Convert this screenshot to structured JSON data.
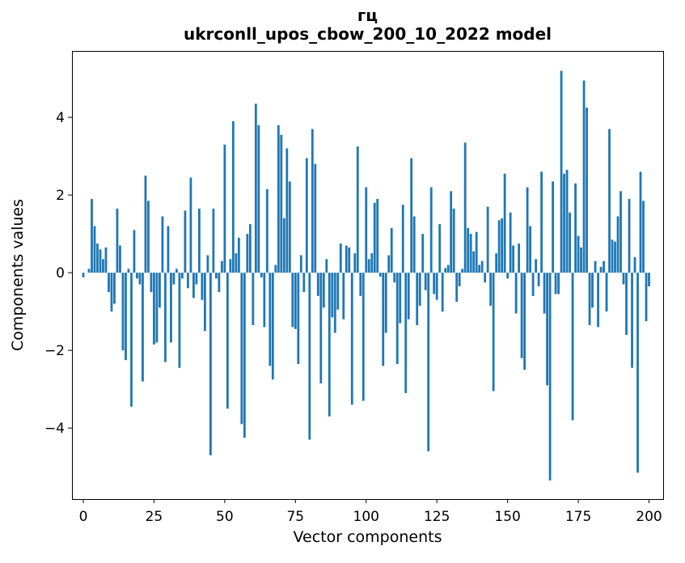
{
  "chart_data": {
    "type": "bar",
    "title": "гц",
    "subtitle": "ukrconll_upos_cbow_200_10_2022 model",
    "xlabel": "Vector components",
    "ylabel": "Components values",
    "bar_color": "#1f77b4",
    "axis_color": "#000000",
    "background_color": "#ffffff",
    "grid": "off",
    "legend": "none",
    "xlim": [
      -4,
      205
    ],
    "ylim": [
      -5.83,
      5.71
    ],
    "xticks": [
      0,
      25,
      50,
      75,
      100,
      125,
      150,
      175,
      200
    ],
    "xtick_labels": [
      "0",
      "25",
      "50",
      "75",
      "100",
      "125",
      "150",
      "175",
      "200"
    ],
    "yticks": [
      4,
      2,
      0,
      -2,
      -4
    ],
    "ytick_labels": [
      "4",
      "2",
      "0",
      "−2",
      "−4"
    ],
    "x_start_index": 0,
    "bar_width_data_units": 0.8,
    "values": [
      -0.12,
      0,
      0.1,
      1.9,
      1.2,
      0.75,
      0.6,
      0.35,
      0.65,
      -0.5,
      -1.0,
      -0.8,
      1.65,
      0.7,
      -2.0,
      -2.25,
      0.1,
      -3.45,
      1.1,
      -0.15,
      -0.3,
      -2.8,
      2.5,
      1.85,
      -0.5,
      -1.85,
      -1.8,
      -0.9,
      1.45,
      -2.3,
      1.2,
      -1.8,
      -0.3,
      0.1,
      -2.45,
      -0.15,
      1.6,
      -0.4,
      2.45,
      -0.65,
      -0.3,
      1.65,
      -0.7,
      -1.5,
      0.45,
      -4.7,
      1.65,
      -0.15,
      -0.5,
      0.3,
      3.3,
      -3.5,
      0.35,
      3.9,
      0.5,
      0.9,
      -3.9,
      -4.25,
      1.0,
      1.25,
      -1.35,
      4.35,
      3.8,
      -0.12,
      -1.4,
      2.15,
      -2.4,
      -2.75,
      0.2,
      3.8,
      3.55,
      1.4,
      3.2,
      2.35,
      -1.4,
      -1.45,
      -2.35,
      0.45,
      -0.5,
      2.95,
      -4.3,
      3.7,
      2.8,
      -0.6,
      -2.85,
      -0.9,
      0.35,
      -3.7,
      -1.15,
      -1.55,
      -0.95,
      0.75,
      -1.2,
      0.7,
      0.65,
      -3.4,
      0.5,
      3.25,
      -0.6,
      -3.3,
      2.2,
      0.35,
      0.5,
      1.8,
      1.9,
      -0.1,
      -2.4,
      -1.55,
      0.45,
      1.15,
      -0.25,
      -2.35,
      -1.3,
      1.75,
      -3.1,
      -1.2,
      2.95,
      1.45,
      -1.35,
      -0.85,
      1.0,
      -0.45,
      -4.6,
      2.2,
      -0.55,
      -0.7,
      1.25,
      -1.0,
      0.12,
      0.2,
      2.1,
      1.65,
      -0.75,
      -0.35,
      0.1,
      3.35,
      1.15,
      1.0,
      0.55,
      1.05,
      0.2,
      0.3,
      -0.25,
      1.7,
      -0.85,
      -3.05,
      0.5,
      1.35,
      1.4,
      2.55,
      -0.15,
      1.55,
      0.7,
      -1.05,
      0.75,
      -2.2,
      -2.5,
      2.2,
      1.2,
      -0.6,
      0.35,
      -0.35,
      2.6,
      -1.05,
      -2.9,
      -5.35,
      2.35,
      -0.55,
      -0.55,
      5.2,
      2.55,
      2.65,
      1.55,
      -3.8,
      2.3,
      0.95,
      0.65,
      4.95,
      4.25,
      -1.35,
      -0.9,
      0.3,
      -1.4,
      0.15,
      0.3,
      -1.0,
      3.7,
      0.85,
      0.8,
      1.45,
      2.1,
      -0.3,
      -1.6,
      1.9,
      -2.45,
      0.4,
      -5.15,
      2.6,
      1.85,
      -1.25,
      -0.35
    ]
  }
}
